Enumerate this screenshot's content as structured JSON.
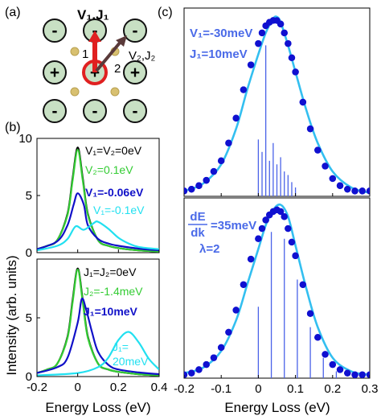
{
  "panel_labels": {
    "a": "(a)",
    "b": "(b)",
    "c": "(c)"
  },
  "lattice": {
    "title": "V₁,J₁",
    "label_1": "1",
    "label_2": "2",
    "label_v2": "V₂,J₂",
    "sites": [
      {
        "row": 0,
        "col": 0,
        "sign": "-"
      },
      {
        "row": 0,
        "col": 1,
        "sign": "-"
      },
      {
        "row": 0,
        "col": 2,
        "sign": "-"
      },
      {
        "row": 1,
        "col": 0,
        "sign": "+"
      },
      {
        "row": 1,
        "col": 1,
        "sign": "+"
      },
      {
        "row": 1,
        "col": 2,
        "sign": "+"
      },
      {
        "row": 2,
        "col": 0,
        "sign": "-"
      },
      {
        "row": 2,
        "col": 1,
        "sign": "-"
      },
      {
        "row": 2,
        "col": 2,
        "sign": "-"
      }
    ],
    "colors": {
      "site": "#c8e0c4",
      "arrow1": "#e02020",
      "arrow2": "#5a3a3a",
      "ring": "#e02020",
      "ball": "#d8c070"
    }
  },
  "chart_data": [
    {
      "id": "b-top",
      "type": "line",
      "ylabel": "Intensity (arb. units)",
      "xlim": [
        -0.2,
        0.4
      ],
      "ylim": [
        0,
        10
      ],
      "yticks": [
        0,
        5,
        10
      ],
      "annotations": [
        "V₁=V₂=0eV",
        "V₂=0.1eV",
        "V₁=-0.06eV",
        "V₁=-0.1eV"
      ],
      "series": [
        {
          "name": "V₁=V₂=0eV",
          "color": "#000000",
          "x": [
            -0.2,
            -0.15,
            -0.1,
            -0.05,
            -0.025,
            0,
            0.025,
            0.05,
            0.1,
            0.15,
            0.2,
            0.3,
            0.4
          ],
          "y": [
            0.3,
            0.6,
            1.1,
            3.4,
            6.5,
            9.2,
            6.5,
            3.4,
            1.1,
            0.6,
            0.4,
            0.2,
            0.1
          ]
        },
        {
          "name": "V₂=0.1eV",
          "color": "#33cc33",
          "x": [
            -0.2,
            -0.15,
            -0.1,
            -0.05,
            -0.025,
            0,
            0.025,
            0.05,
            0.1,
            0.15,
            0.2,
            0.3,
            0.4
          ],
          "y": [
            0.3,
            0.6,
            1.1,
            3.3,
            6.3,
            9.0,
            6.3,
            3.3,
            1.1,
            0.6,
            0.4,
            0.2,
            0.1
          ]
        },
        {
          "name": "V₁=-0.06eV",
          "color": "#1010c8",
          "x": [
            -0.2,
            -0.1,
            -0.05,
            -0.02,
            0,
            0.03,
            0.05,
            0.1,
            0.15,
            0.2,
            0.3,
            0.4
          ],
          "y": [
            0.3,
            1.0,
            2.4,
            4.2,
            5.2,
            4.2,
            2.4,
            1.2,
            0.8,
            0.6,
            0.35,
            0.2
          ]
        },
        {
          "name": "V₁=-0.1eV",
          "color": "#22e0f0",
          "x": [
            -0.2,
            -0.1,
            -0.05,
            -0.01,
            0.03,
            0.08,
            0.1,
            0.15,
            0.2,
            0.25,
            0.3,
            0.4
          ],
          "y": [
            0.2,
            0.6,
            1.2,
            2.3,
            2.0,
            2.6,
            2.7,
            2.1,
            1.3,
            0.8,
            0.5,
            0.3
          ]
        }
      ]
    },
    {
      "id": "b-bottom",
      "type": "line",
      "xlabel": "Energy Loss (eV)",
      "xlim": [
        -0.2,
        0.4
      ],
      "ylim": [
        0,
        10
      ],
      "xticks": [
        -0.2,
        0,
        0.2,
        0.4
      ],
      "xtick_labels": [
        "-0.2",
        "0",
        "0.2",
        "0.4"
      ],
      "yticks": [
        0,
        5
      ],
      "annotations": [
        "J₁=J₂=0eV",
        "J₂=-1.4meV",
        "J₁=10meV",
        "J₁=",
        "20meV"
      ],
      "series": [
        {
          "name": "J₁=J₂=0eV",
          "color": "#000000",
          "x": [
            -0.2,
            -0.15,
            -0.1,
            -0.05,
            -0.025,
            0,
            0.025,
            0.05,
            0.1,
            0.15,
            0.2,
            0.3,
            0.4
          ],
          "y": [
            0.3,
            0.6,
            1.1,
            3.4,
            6.5,
            9.2,
            6.5,
            3.4,
            1.1,
            0.6,
            0.4,
            0.2,
            0.1
          ]
        },
        {
          "name": "J₂=-1.4meV",
          "color": "#33cc33",
          "x": [
            -0.2,
            -0.15,
            -0.1,
            -0.05,
            -0.025,
            0,
            0.025,
            0.05,
            0.1,
            0.15,
            0.2,
            0.3,
            0.4
          ],
          "y": [
            0.3,
            0.6,
            1.1,
            3.3,
            6.3,
            9.1,
            6.3,
            3.3,
            1.1,
            0.6,
            0.4,
            0.2,
            0.1
          ]
        },
        {
          "name": "J₁=10meV",
          "color": "#1010c8",
          "x": [
            -0.2,
            -0.1,
            -0.05,
            0,
            0.02,
            0.04,
            0.07,
            0.1,
            0.15,
            0.2,
            0.3,
            0.4
          ],
          "y": [
            0.3,
            0.8,
            1.6,
            4.6,
            6.6,
            5.8,
            3.8,
            2.1,
            1.0,
            0.6,
            0.35,
            0.2
          ]
        },
        {
          "name": "J₁=20meV",
          "color": "#22e0f0",
          "x": [
            -0.2,
            0,
            0.1,
            0.15,
            0.2,
            0.25,
            0.3,
            0.35,
            0.4
          ],
          "y": [
            0.1,
            0.3,
            0.8,
            1.6,
            3.1,
            3.8,
            2.9,
            1.5,
            0.6
          ]
        }
      ]
    },
    {
      "id": "c-top",
      "type": "scatter",
      "xlim": [
        -0.2,
        0.3
      ],
      "ylim": [
        0,
        1.06
      ],
      "annotations": [
        "V₁=-30meV",
        "J₁=10meV"
      ],
      "series": [
        {
          "name": "data",
          "color": "#1010d0",
          "x": [
            -0.2,
            -0.18,
            -0.16,
            -0.14,
            -0.12,
            -0.1,
            -0.08,
            -0.06,
            -0.04,
            -0.02,
            0,
            0.01,
            0.02,
            0.03,
            0.04,
            0.05,
            0.06,
            0.07,
            0.08,
            0.09,
            0.1,
            0.12,
            0.14,
            0.16,
            0.18,
            0.2,
            0.22,
            0.24,
            0.26,
            0.28,
            0.3
          ],
          "y": [
            0.03,
            0.04,
            0.06,
            0.09,
            0.14,
            0.2,
            0.3,
            0.44,
            0.6,
            0.74,
            0.86,
            0.92,
            0.96,
            0.98,
            0.99,
            0.99,
            0.97,
            0.92,
            0.86,
            0.78,
            0.7,
            0.53,
            0.38,
            0.26,
            0.17,
            0.1,
            0.06,
            0.04,
            0.03,
            0.03,
            0.03
          ]
        },
        {
          "name": "fit",
          "color": "#33bff0",
          "x": [
            -0.2,
            -0.15,
            -0.1,
            -0.06,
            -0.03,
            0,
            0.02,
            0.04,
            0.05,
            0.06,
            0.08,
            0.1,
            0.13,
            0.16,
            0.2,
            0.25,
            0.3
          ],
          "y": [
            0.03,
            0.07,
            0.18,
            0.38,
            0.6,
            0.8,
            0.92,
            1.0,
            1.01,
            0.98,
            0.85,
            0.7,
            0.48,
            0.3,
            0.14,
            0.05,
            0.02
          ]
        }
      ],
      "sticks": {
        "color": "#4a62e8",
        "x": [
          0.0,
          0.01,
          0.02,
          0.03,
          0.04,
          0.05,
          0.06,
          0.07,
          0.08,
          0.09,
          0.1
        ],
        "y": [
          0.32,
          0.25,
          0.85,
          0.2,
          0.3,
          0.18,
          0.22,
          0.14,
          0.12,
          0.08,
          0.05
        ]
      }
    },
    {
      "id": "c-bottom",
      "type": "scatter",
      "xlabel": "Energy Loss (eV)",
      "xlim": [
        -0.2,
        0.3
      ],
      "ylim": [
        0,
        1.06
      ],
      "xticks": [
        -0.2,
        -0.1,
        0,
        0.1,
        0.2,
        0.3
      ],
      "xtick_labels": [
        "-0.2",
        "-0.1",
        "0",
        "0.1",
        "0.2",
        "0.3"
      ],
      "annotations": [
        "dE",
        "dk",
        "=35meV",
        "λ=2"
      ],
      "series": [
        {
          "name": "data",
          "color": "#1010d0",
          "x": [
            -0.2,
            -0.18,
            -0.16,
            -0.14,
            -0.12,
            -0.1,
            -0.08,
            -0.06,
            -0.04,
            -0.02,
            0,
            0.01,
            0.02,
            0.03,
            0.04,
            0.05,
            0.06,
            0.07,
            0.08,
            0.09,
            0.1,
            0.12,
            0.14,
            0.16,
            0.18,
            0.2,
            0.22,
            0.24,
            0.26,
            0.28,
            0.3
          ],
          "y": [
            0.02,
            0.03,
            0.05,
            0.08,
            0.12,
            0.18,
            0.27,
            0.4,
            0.55,
            0.7,
            0.82,
            0.88,
            0.93,
            0.96,
            0.98,
            0.99,
            0.98,
            0.95,
            0.88,
            0.8,
            0.72,
            0.55,
            0.38,
            0.24,
            0.14,
            0.08,
            0.05,
            0.03,
            0.02,
            0.02,
            0.02
          ]
        },
        {
          "name": "fit",
          "color": "#33bff0",
          "x": [
            -0.2,
            -0.15,
            -0.1,
            -0.06,
            -0.03,
            0,
            0.02,
            0.04,
            0.06,
            0.08,
            0.1,
            0.13,
            0.16,
            0.2,
            0.25,
            0.3
          ],
          "y": [
            0.03,
            0.06,
            0.16,
            0.34,
            0.55,
            0.76,
            0.9,
            0.99,
            1.02,
            0.95,
            0.78,
            0.52,
            0.3,
            0.12,
            0.04,
            0.02
          ]
        }
      ],
      "sticks": {
        "color": "#4a62e8",
        "x": [
          0.0,
          0.035,
          0.07,
          0.105,
          0.14,
          0.175,
          0.21
        ],
        "y": [
          0.42,
          0.86,
          0.82,
          0.58,
          0.3,
          0.12,
          0.04
        ]
      }
    }
  ]
}
